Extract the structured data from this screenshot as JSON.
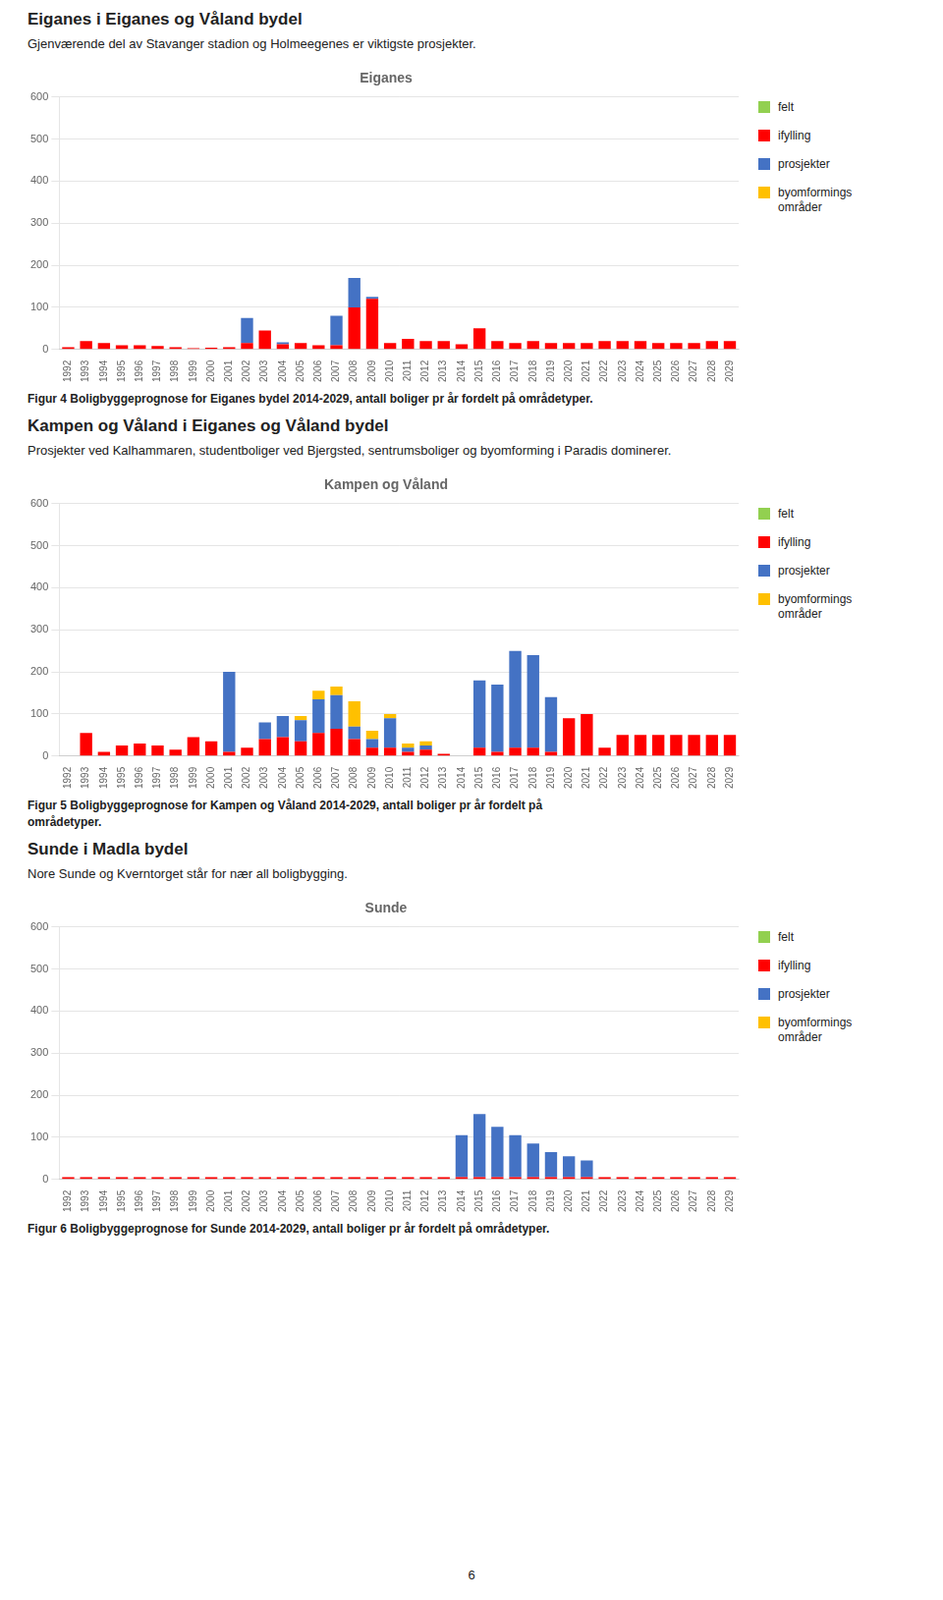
{
  "chart_data": [
    {
      "type": "bar",
      "title": "Eiganes",
      "subtitle": "Gjenværende del av Stavanger stadion og Holmeegenes er viktigste prosjekter.",
      "annotations": [
        "Eiganes i Eiganes og Våland bydel",
        "Figur 4 Boligbyggeprognose for Eiganes bydel 2014-2029, antall boliger pr år fordelt på områdetyper."
      ],
      "categories": [
        "1992",
        "1993",
        "1994",
        "1995",
        "1996",
        "1997",
        "1998",
        "1999",
        "2000",
        "2001",
        "2002",
        "2003",
        "2004",
        "2005",
        "2006",
        "2007",
        "2008",
        "2009",
        "2010",
        "2011",
        "2012",
        "2013",
        "2014",
        "2015",
        "2016",
        "2017",
        "2018",
        "2019",
        "2020",
        "2021",
        "2022",
        "2023",
        "2024",
        "2025",
        "2026",
        "2027",
        "2028",
        "2029"
      ],
      "series": [
        {
          "name": "felt",
          "color": "#92d050",
          "values": [
            0,
            0,
            0,
            0,
            0,
            0,
            0,
            0,
            0,
            0,
            0,
            0,
            0,
            0,
            0,
            0,
            0,
            0,
            0,
            0,
            0,
            0,
            0,
            0,
            0,
            0,
            0,
            0,
            0,
            0,
            0,
            0,
            0,
            0,
            0,
            0,
            0,
            0
          ]
        },
        {
          "name": "ifylling",
          "color": "#ff0000",
          "values": [
            5,
            20,
            15,
            10,
            10,
            8,
            5,
            3,
            4,
            5,
            15,
            45,
            12,
            15,
            10,
            10,
            100,
            120,
            15,
            25,
            20,
            20,
            12,
            50,
            20,
            15,
            20,
            15,
            15,
            15,
            20,
            20,
            20,
            15,
            15,
            15,
            20,
            20
          ]
        },
        {
          "name": "prosjekter",
          "color": "#4472c4",
          "values": [
            0,
            0,
            0,
            0,
            0,
            0,
            0,
            0,
            0,
            0,
            60,
            0,
            5,
            0,
            0,
            70,
            70,
            5,
            0,
            0,
            0,
            0,
            0,
            0,
            0,
            0,
            0,
            0,
            0,
            0,
            0,
            0,
            0,
            0,
            0,
            0,
            0,
            0
          ]
        },
        {
          "name": "byomformings\nområder",
          "color": "#ffc000",
          "values": [
            0,
            0,
            0,
            0,
            0,
            0,
            0,
            0,
            0,
            0,
            0,
            0,
            0,
            0,
            0,
            0,
            0,
            0,
            0,
            0,
            0,
            0,
            0,
            0,
            0,
            0,
            0,
            0,
            0,
            0,
            0,
            0,
            0,
            0,
            0,
            0,
            0,
            0
          ]
        }
      ],
      "ylim": [
        0,
        600
      ],
      "yticks": [
        0,
        100,
        200,
        300,
        400,
        500,
        600
      ],
      "grid": true,
      "stacked": true,
      "legend": "right"
    },
    {
      "type": "bar",
      "title": "Kampen og Våland",
      "subtitle": "Prosjekter ved Kalhammaren, studentboliger ved Bjergsted, sentrumsboliger og byomforming i Paradis dominerer.",
      "annotations": [
        "Kampen og Våland i Eiganes og Våland bydel",
        "Figur 5 Boligbyggeprognose for Kampen og Våland 2014-2029, antall boliger pr år fordelt på",
        "områdetyper."
      ],
      "categories": [
        "1992",
        "1993",
        "1994",
        "1995",
        "1996",
        "1997",
        "1998",
        "1999",
        "2000",
        "2001",
        "2002",
        "2003",
        "2004",
        "2005",
        "2006",
        "2007",
        "2008",
        "2009",
        "2010",
        "2011",
        "2012",
        "2013",
        "2014",
        "2015",
        "2016",
        "2017",
        "2018",
        "2019",
        "2020",
        "2021",
        "2022",
        "2023",
        "2024",
        "2025",
        "2026",
        "2027",
        "2028",
        "2029"
      ],
      "series": [
        {
          "name": "felt",
          "color": "#92d050",
          "values": [
            0,
            0,
            0,
            0,
            0,
            0,
            0,
            0,
            0,
            0,
            0,
            0,
            0,
            0,
            0,
            0,
            0,
            0,
            0,
            0,
            0,
            0,
            0,
            0,
            0,
            0,
            0,
            0,
            0,
            0,
            0,
            0,
            0,
            0,
            0,
            0,
            0,
            0
          ]
        },
        {
          "name": "ifylling",
          "color": "#ff0000",
          "values": [
            0,
            55,
            10,
            25,
            30,
            25,
            15,
            45,
            35,
            10,
            20,
            40,
            45,
            35,
            55,
            65,
            40,
            20,
            20,
            10,
            15,
            5,
            0,
            20,
            10,
            20,
            20,
            10,
            90,
            100,
            20,
            50,
            50,
            50,
            50,
            50,
            50,
            50
          ]
        },
        {
          "name": "prosjekter",
          "color": "#4472c4",
          "values": [
            0,
            0,
            0,
            0,
            0,
            0,
            0,
            0,
            0,
            190,
            0,
            40,
            50,
            50,
            80,
            80,
            30,
            20,
            70,
            10,
            10,
            0,
            0,
            160,
            160,
            230,
            220,
            130,
            0,
            0,
            0,
            0,
            0,
            0,
            0,
            0,
            0,
            0
          ]
        },
        {
          "name": "byomformings\nområder",
          "color": "#ffc000",
          "values": [
            0,
            0,
            0,
            0,
            0,
            0,
            0,
            0,
            0,
            0,
            0,
            0,
            0,
            10,
            20,
            20,
            60,
            20,
            10,
            10,
            10,
            0,
            0,
            0,
            0,
            0,
            0,
            0,
            0,
            0,
            0,
            0,
            0,
            0,
            0,
            0,
            0,
            0
          ]
        }
      ],
      "ylim": [
        0,
        600
      ],
      "yticks": [
        0,
        100,
        200,
        300,
        400,
        500,
        600
      ],
      "grid": true,
      "stacked": true,
      "legend": "right"
    },
    {
      "type": "bar",
      "title": "Sunde",
      "subtitle": "Nore Sunde og Kverntorget står for nær all boligbygging.",
      "annotations": [
        "Sunde i Madla bydel",
        "Figur 6 Boligbyggeprognose for Sunde 2014-2029, antall boliger pr år fordelt på områdetyper."
      ],
      "categories": [
        "1992",
        "1993",
        "1994",
        "1995",
        "1996",
        "1997",
        "1998",
        "1999",
        "2000",
        "2001",
        "2002",
        "2003",
        "2004",
        "2005",
        "2006",
        "2007",
        "2008",
        "2009",
        "2010",
        "2011",
        "2012",
        "2013",
        "2014",
        "2015",
        "2016",
        "2017",
        "2018",
        "2019",
        "2020",
        "2021",
        "2022",
        "2023",
        "2024",
        "2025",
        "2026",
        "2027",
        "2028",
        "2029"
      ],
      "series": [
        {
          "name": "felt",
          "color": "#92d050",
          "values": [
            0,
            0,
            0,
            0,
            0,
            0,
            0,
            0,
            0,
            0,
            0,
            0,
            0,
            0,
            0,
            0,
            0,
            0,
            0,
            0,
            0,
            0,
            0,
            0,
            0,
            0,
            0,
            0,
            0,
            0,
            0,
            0,
            0,
            0,
            0,
            0,
            0,
            0
          ]
        },
        {
          "name": "ifylling",
          "color": "#ff0000",
          "values": [
            5,
            5,
            5,
            5,
            5,
            5,
            5,
            5,
            5,
            5,
            5,
            5,
            5,
            5,
            5,
            5,
            5,
            5,
            5,
            5,
            5,
            5,
            5,
            5,
            5,
            5,
            5,
            5,
            5,
            5,
            5,
            5,
            5,
            5,
            5,
            5,
            5,
            5
          ]
        },
        {
          "name": "prosjekter",
          "color": "#4472c4",
          "values": [
            0,
            0,
            0,
            0,
            0,
            0,
            0,
            0,
            0,
            0,
            0,
            0,
            0,
            0,
            0,
            0,
            0,
            0,
            0,
            0,
            0,
            0,
            100,
            150,
            120,
            100,
            80,
            60,
            50,
            40,
            0,
            0,
            0,
            0,
            0,
            0,
            0,
            0
          ]
        },
        {
          "name": "byomformings\nområder",
          "color": "#ffc000",
          "values": [
            0,
            0,
            0,
            0,
            0,
            0,
            0,
            0,
            0,
            0,
            0,
            0,
            0,
            0,
            0,
            0,
            0,
            0,
            0,
            0,
            0,
            0,
            0,
            0,
            0,
            0,
            0,
            0,
            0,
            0,
            0,
            0,
            0,
            0,
            0,
            0,
            0,
            0
          ]
        }
      ],
      "ylim": [
        0,
        600
      ],
      "yticks": [
        0,
        100,
        200,
        300,
        400,
        500,
        600
      ],
      "grid": true,
      "stacked": true,
      "legend": "right"
    }
  ],
  "annotations": [
    "6"
  ]
}
